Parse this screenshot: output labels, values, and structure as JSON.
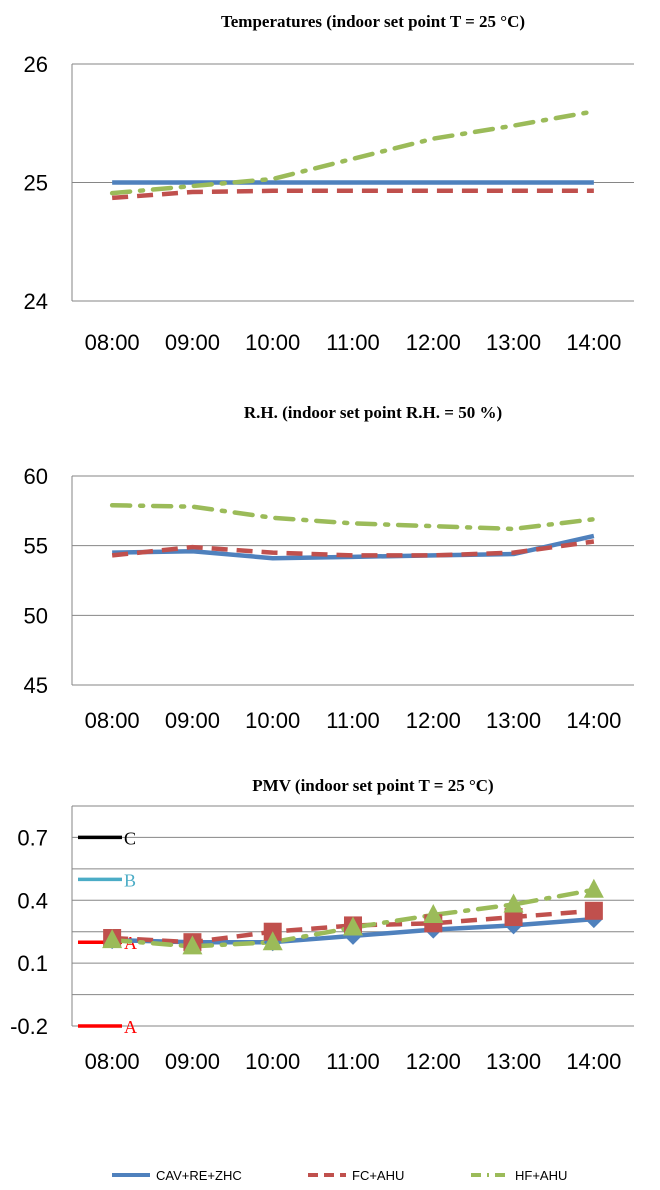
{
  "chart_data": [
    {
      "type": "line",
      "title": "Temperatures (indoor set point T = 25 °C)",
      "categories": [
        "08:00",
        "09:00",
        "10:00",
        "11:00",
        "12:00",
        "13:00",
        "14:00"
      ],
      "ylim": [
        24,
        26
      ],
      "yticks": [
        "24",
        "25",
        "26"
      ],
      "grid": true,
      "series": [
        {
          "name": "CAV+RE+ZHC",
          "color": "#4F81BD",
          "dash": "solid",
          "values": [
            25.0,
            25.0,
            25.0,
            25.0,
            25.0,
            25.0,
            25.0
          ]
        },
        {
          "name": "FC+AHU",
          "color": "#C0504D",
          "dash": "dashed",
          "values": [
            24.87,
            24.92,
            24.93,
            24.93,
            24.93,
            24.93,
            24.93
          ]
        },
        {
          "name": "HF+AHU",
          "color": "#9BBB59",
          "dash": "dashdot",
          "values": [
            24.91,
            24.97,
            25.03,
            25.2,
            25.37,
            25.48,
            25.6
          ]
        }
      ]
    },
    {
      "type": "line",
      "title": "R.H. (indoor set point R.H. = 50 %)",
      "categories": [
        "08:00",
        "09:00",
        "10:00",
        "11:00",
        "12:00",
        "13:00",
        "14:00"
      ],
      "ylim": [
        45,
        60
      ],
      "yticks": [
        "45",
        "50",
        "55",
        "60"
      ],
      "grid": true,
      "series": [
        {
          "name": "CAV+RE+ZHC",
          "color": "#4F81BD",
          "dash": "solid",
          "values": [
            54.5,
            54.6,
            54.1,
            54.2,
            54.3,
            54.4,
            55.7
          ]
        },
        {
          "name": "FC+AHU",
          "color": "#C0504D",
          "dash": "dashed",
          "values": [
            54.3,
            54.9,
            54.5,
            54.3,
            54.3,
            54.5,
            55.3
          ]
        },
        {
          "name": "HF+AHU",
          "color": "#9BBB59",
          "dash": "dashdot",
          "values": [
            57.9,
            57.8,
            57.0,
            56.6,
            56.4,
            56.2,
            56.9
          ]
        }
      ]
    },
    {
      "type": "line",
      "title": "PMV (indoor set point T = 25 °C)",
      "categories": [
        "08:00",
        "09:00",
        "10:00",
        "11:00",
        "12:00",
        "13:00",
        "14:00"
      ],
      "ylim": [
        -0.2,
        0.85
      ],
      "yticks": [
        "-0.2",
        "0.1",
        "0.4",
        "0.7"
      ],
      "grid": true,
      "series": [
        {
          "name": "CAV+RE+ZHC",
          "color": "#4F81BD",
          "dash": "solid",
          "marker": "diamond",
          "values": [
            0.21,
            0.2,
            0.2,
            0.23,
            0.26,
            0.28,
            0.31
          ]
        },
        {
          "name": "FC+AHU",
          "color": "#C0504D",
          "dash": "dashed",
          "marker": "square",
          "values": [
            0.22,
            0.2,
            0.25,
            0.28,
            0.29,
            0.32,
            0.35
          ]
        },
        {
          "name": "HF+AHU",
          "color": "#9BBB59",
          "dash": "dashdot",
          "marker": "triangle",
          "values": [
            0.21,
            0.18,
            0.2,
            0.27,
            0.33,
            0.38,
            0.45
          ]
        }
      ],
      "reference_marks": [
        {
          "label": "C",
          "value": 0.7,
          "color": "#000000"
        },
        {
          "label": "B",
          "value": 0.5,
          "color": "#4BACC6"
        },
        {
          "label": "A",
          "value": 0.2,
          "color": "#FF0000"
        },
        {
          "label": "A",
          "value": -0.2,
          "color": "#FF0000"
        }
      ],
      "legend_position": "bottom"
    }
  ]
}
